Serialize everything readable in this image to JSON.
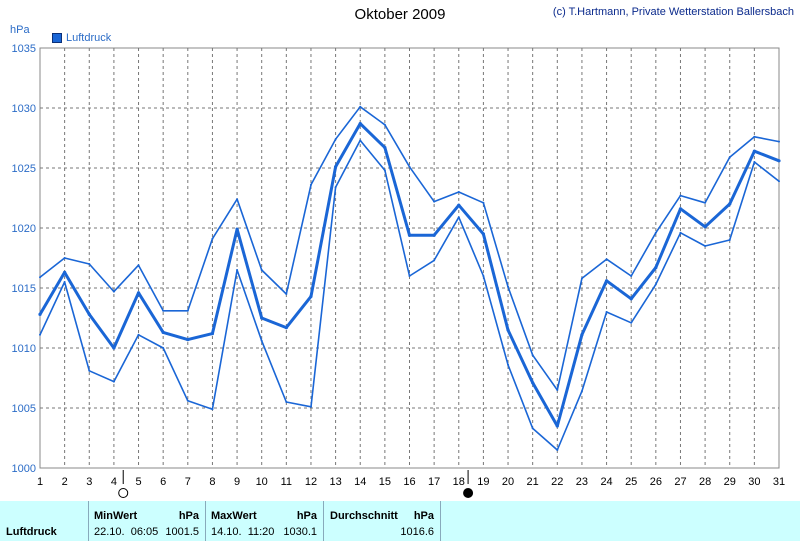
{
  "header": {
    "title": "Oktober 2009",
    "credit": "(c) T.Hartmann, Private Wetterstation Ballersbach",
    "unit": "hPa",
    "legend_label": "Luftdruck"
  },
  "colors": {
    "series": "#1a66d6",
    "grid": "#777777",
    "stats_bg": "#ccffff"
  },
  "chart_data": {
    "type": "line",
    "title": "Oktober 2009",
    "ylabel": "hPa",
    "ylim": [
      1000,
      1035
    ],
    "yticks": [
      1000,
      1005,
      1010,
      1015,
      1020,
      1025,
      1030,
      1035
    ],
    "x": [
      1,
      2,
      3,
      4,
      5,
      6,
      7,
      8,
      9,
      10,
      11,
      12,
      13,
      14,
      15,
      16,
      17,
      18,
      19,
      20,
      21,
      22,
      23,
      24,
      25,
      26,
      27,
      28,
      29,
      30,
      31
    ],
    "series": [
      {
        "name": "Luftdruck",
        "role": "max",
        "values": [
          1015.9,
          1017.5,
          1017,
          1014.7,
          1016.9,
          1013.1,
          1013.1,
          1019.1,
          1022.4,
          1016.5,
          1014.5,
          1023.6,
          1027.4,
          1030.1,
          1028.6,
          1025.1,
          1022.2,
          1023,
          1022.1,
          1015.1,
          1009.4,
          1006.5,
          1015.8,
          1017.4,
          1016,
          1019.6,
          1022.7,
          1022.1,
          1025.9,
          1027.6,
          1027.2
        ]
      },
      {
        "name": "Luftdruck",
        "role": "mean",
        "values": [
          1012.8,
          1016.3,
          1012.8,
          1010,
          1014.6,
          1011.3,
          1010.7,
          1011.2,
          1019.9,
          1012.5,
          1011.7,
          1014.3,
          1025.1,
          1028.7,
          1026.7,
          1019.4,
          1019.4,
          1021.9,
          1019.5,
          1011.5,
          1007.1,
          1003.5,
          1011.1,
          1015.6,
          1014.1,
          1016.7,
          1021.6,
          1020.1,
          1022,
          1026.4,
          1025.6
        ]
      },
      {
        "name": "Luftdruck",
        "role": "min",
        "values": [
          1011.1,
          1015.5,
          1008.1,
          1007.2,
          1011.1,
          1010,
          1005.6,
          1004.9,
          1016.5,
          1010.6,
          1005.5,
          1005.1,
          1023.4,
          1027.3,
          1024.8,
          1016,
          1017.3,
          1020.9,
          1016,
          1008.6,
          1003.3,
          1001.5,
          1006.4,
          1013,
          1012.1,
          1015.3,
          1019.6,
          1018.5,
          1019,
          1025.5,
          1023.9
        ]
      }
    ],
    "moon_phases": [
      {
        "day": 4,
        "phase": "full-moon"
      },
      {
        "day": 18,
        "phase": "new-moon"
      }
    ],
    "grid": true
  },
  "stats": {
    "row_label": "Luftdruck",
    "min_header": "MinWert",
    "min_unit": "hPa",
    "min_datetime": "22.10.  06:05",
    "min_value": "1001.5",
    "max_header": "MaxWert",
    "max_unit": "hPa",
    "max_datetime": "14.10.  11:20",
    "max_value": "1030.1",
    "avg_header": "Durchschnitt",
    "avg_unit": "hPa",
    "avg_value": "1016.6"
  }
}
